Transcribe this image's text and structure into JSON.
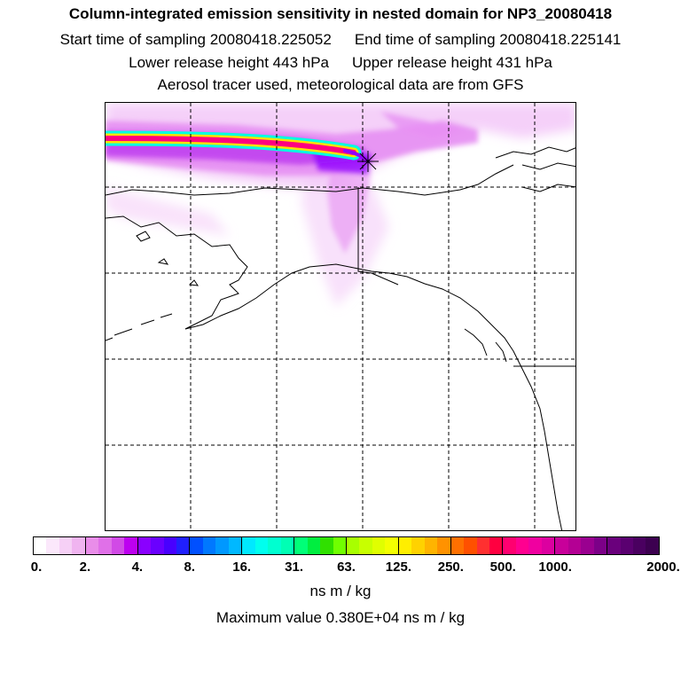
{
  "titles": {
    "main": "Column-integrated emission sensitivity in nested domain for NP3_20080418",
    "start_sampling": "Start time of sampling 20080418.225052",
    "end_sampling": "End time of sampling 20080418.225141",
    "lower_release": "Lower release height  443 hPa",
    "upper_release": "Upper release height  431 hPa",
    "info": "Aerosol tracer used, meteorological data are from GFS"
  },
  "colorbar": {
    "tick_labels": [
      "0.",
      "2.",
      "4.",
      "8.",
      "16.",
      "31.",
      "63.",
      "125.",
      "250.",
      "500.",
      "1000.",
      "2000."
    ],
    "unit": "ns m / kg",
    "segments": [
      [
        "#ffffff",
        "#fbe8fb",
        "#f6d0f6",
        "#f0b4f0"
      ],
      [
        "#e98de9",
        "#e070e8",
        "#d14ae6",
        "#bd00f0"
      ],
      [
        "#8a00ff",
        "#6a00ff",
        "#4800ff",
        "#2020ff"
      ],
      [
        "#0050ff",
        "#0078ff",
        "#0098ff",
        "#00b8ff"
      ],
      [
        "#00e8ff",
        "#00ffee",
        "#00ffd0",
        "#00ffb4"
      ],
      [
        "#00ff78",
        "#00ee40",
        "#30e000",
        "#70ff00"
      ],
      [
        "#a8ff00",
        "#c8ff00",
        "#e0ff00",
        "#f4ff00"
      ],
      [
        "#ffee00",
        "#ffd200",
        "#ffb400",
        "#ff9200"
      ],
      [
        "#ff7000",
        "#ff5000",
        "#ff3030",
        "#ff0040"
      ],
      [
        "#ff0070",
        "#ff0090",
        "#f000a0",
        "#dc00a0"
      ],
      [
        "#c8009a",
        "#b40094",
        "#9a0090",
        "#7c0088"
      ],
      [
        "#6a007c",
        "#5a0070",
        "#4a0060",
        "#3c0050"
      ]
    ]
  },
  "max_value": "Maximum value  0.380E+04 ns m / kg",
  "map": {
    "projection_grid": "dashed lat/lon lines",
    "region": "Alaska, western Canada and US Pacific Northwest",
    "release_marker": "star-marker",
    "plume_colors": {
      "faint": "#f3c8f8",
      "light": "#e68ef2",
      "mid": "#c040f0",
      "dark": "#9000ff",
      "core_outer": "#00ffe0",
      "core_mid": "#ffe000",
      "core_inner": "#ff0080"
    }
  }
}
